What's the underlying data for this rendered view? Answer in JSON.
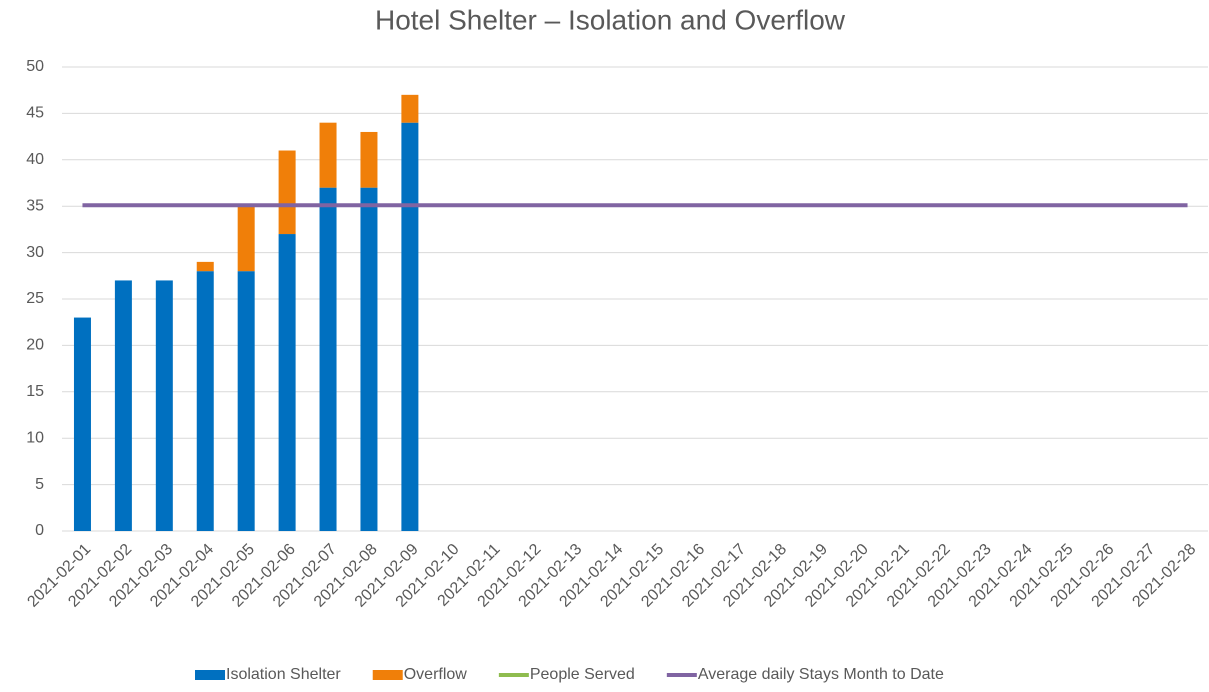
{
  "chart_data": {
    "type": "stacked-bar-line",
    "title": "Hotel Shelter – Isolation and Overflow",
    "categories": [
      "2021-02-01",
      "2021-02-02",
      "2021-02-03",
      "2021-02-04",
      "2021-02-05",
      "2021-02-06",
      "2021-02-07",
      "2021-02-08",
      "2021-02-09",
      "2021-02-10",
      "2021-02-11",
      "2021-02-12",
      "2021-02-13",
      "2021-02-14",
      "2021-02-15",
      "2021-02-16",
      "2021-02-17",
      "2021-02-18",
      "2021-02-19",
      "2021-02-20",
      "2021-02-21",
      "2021-02-22",
      "2021-02-23",
      "2021-02-24",
      "2021-02-25",
      "2021-02-26",
      "2021-02-27",
      "2021-02-28"
    ],
    "series": [
      {
        "name": "Isolation Shelter",
        "kind": "bar",
        "color": "#0070c0",
        "values": [
          23,
          27,
          27,
          28,
          28,
          32,
          37,
          37,
          44,
          null,
          null,
          null,
          null,
          null,
          null,
          null,
          null,
          null,
          null,
          null,
          null,
          null,
          null,
          null,
          null,
          null,
          null,
          null
        ]
      },
      {
        "name": "Overflow",
        "kind": "bar",
        "color": "#f07f09",
        "values": [
          0,
          0,
          0,
          1,
          7,
          9,
          7,
          6,
          3,
          null,
          null,
          null,
          null,
          null,
          null,
          null,
          null,
          null,
          null,
          null,
          null,
          null,
          null,
          null,
          null,
          null,
          null,
          null
        ]
      },
      {
        "name": "People Served",
        "kind": "line",
        "color": "#8fbc4f",
        "values": [
          null,
          null,
          null,
          null,
          null,
          null,
          null,
          null,
          null,
          null,
          null,
          null,
          null,
          null,
          null,
          null,
          null,
          null,
          null,
          null,
          null,
          null,
          null,
          null,
          null,
          null,
          null,
          null
        ]
      },
      {
        "name": "Average daily Stays Month to Date",
        "kind": "line",
        "color": "#8064a2",
        "values": [
          35.1,
          35.1,
          35.1,
          35.1,
          35.1,
          35.1,
          35.1,
          35.1,
          35.1,
          35.1,
          35.1,
          35.1,
          35.1,
          35.1,
          35.1,
          35.1,
          35.1,
          35.1,
          35.1,
          35.1,
          35.1,
          35.1,
          35.1,
          35.1,
          35.1,
          35.1,
          35.1,
          35.1
        ]
      }
    ],
    "ylim": [
      0,
      50
    ],
    "yticks": [
      0,
      5,
      10,
      15,
      20,
      25,
      30,
      35,
      40,
      45,
      50
    ],
    "grid": true,
    "legend": "bottom"
  }
}
